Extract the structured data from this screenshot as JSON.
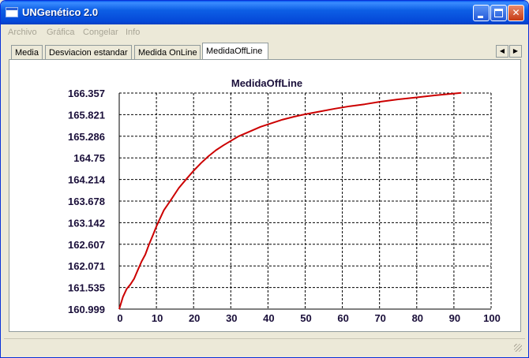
{
  "window": {
    "title": "UNGenético 2.0",
    "accent_color": "#0a5bf0",
    "controls": [
      {
        "name": "minimize-icon"
      },
      {
        "name": "maximize-icon"
      },
      {
        "name": "close-icon"
      }
    ]
  },
  "menu": {
    "items": [
      {
        "label": "Archivo"
      },
      {
        "label": "Gráfica"
      },
      {
        "label": "Congelar"
      },
      {
        "label": "Info"
      }
    ]
  },
  "tabs": {
    "items": [
      {
        "label": "Media"
      },
      {
        "label": "Desviacion estandar"
      },
      {
        "label": "Medida OnLine"
      },
      {
        "label": "MedidaOffLine"
      }
    ],
    "active_index": 3,
    "scroll_left_icon": "chevron-left-icon",
    "scroll_right_icon": "chevron-right-icon"
  },
  "chart_data": {
    "type": "line",
    "title": "MedidaOffLine",
    "xlabel": "",
    "ylabel": "",
    "xlim": [
      0,
      100
    ],
    "ylim": [
      160.999,
      166.357
    ],
    "x_ticks": [
      "0",
      "10",
      "20",
      "30",
      "40",
      "50",
      "60",
      "70",
      "80",
      "90",
      "100"
    ],
    "y_ticks": [
      "160.999",
      "161.535",
      "162.071",
      "162.607",
      "163.142",
      "163.678",
      "164.214",
      "164.75",
      "165.286",
      "165.821",
      "166.357"
    ],
    "grid": true,
    "line_color": "#cc0000",
    "series": [
      {
        "x": [
          0,
          1,
          2,
          3,
          4,
          5,
          6,
          7,
          8,
          9,
          10,
          12,
          14,
          16,
          18,
          20,
          22,
          24,
          26,
          28,
          30,
          32,
          35,
          38,
          41,
          44,
          47,
          50,
          54,
          58,
          62,
          66,
          70,
          75,
          80,
          85,
          92
        ],
        "y": [
          160.999,
          161.3,
          161.5,
          161.61,
          161.75,
          161.97,
          162.18,
          162.35,
          162.6,
          162.82,
          163.05,
          163.45,
          163.72,
          164.0,
          164.22,
          164.43,
          164.62,
          164.79,
          164.94,
          165.06,
          165.17,
          165.28,
          165.4,
          165.52,
          165.61,
          165.7,
          165.77,
          165.83,
          165.9,
          165.97,
          166.03,
          166.08,
          166.14,
          166.2,
          166.25,
          166.3,
          166.36
        ]
      }
    ]
  }
}
